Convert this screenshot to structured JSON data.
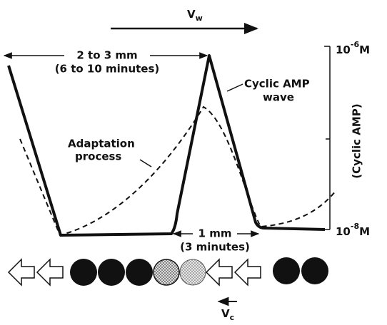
{
  "labels": {
    "wave_velocity": {
      "symbol": "V",
      "subscript": "w"
    },
    "wavelength": {
      "distance": "2 to 3 mm",
      "time": "(6 to 10 minutes)"
    },
    "camp_wave": [
      "Cyclic AMP",
      "wave"
    ],
    "adaptation": [
      "Adaptation",
      "process"
    ],
    "axis": {
      "title": "(Cyclic AMP)",
      "top": {
        "base": "10",
        "exponent": "-6",
        "unit": "M"
      },
      "bottom": {
        "base": "10",
        "exponent": "-8",
        "unit": "M"
      }
    },
    "peak_width": {
      "distance": "1 mm",
      "time": "(3 minutes)"
    },
    "cell_velocity": {
      "symbol": "V",
      "subscript": "c"
    }
  }
}
